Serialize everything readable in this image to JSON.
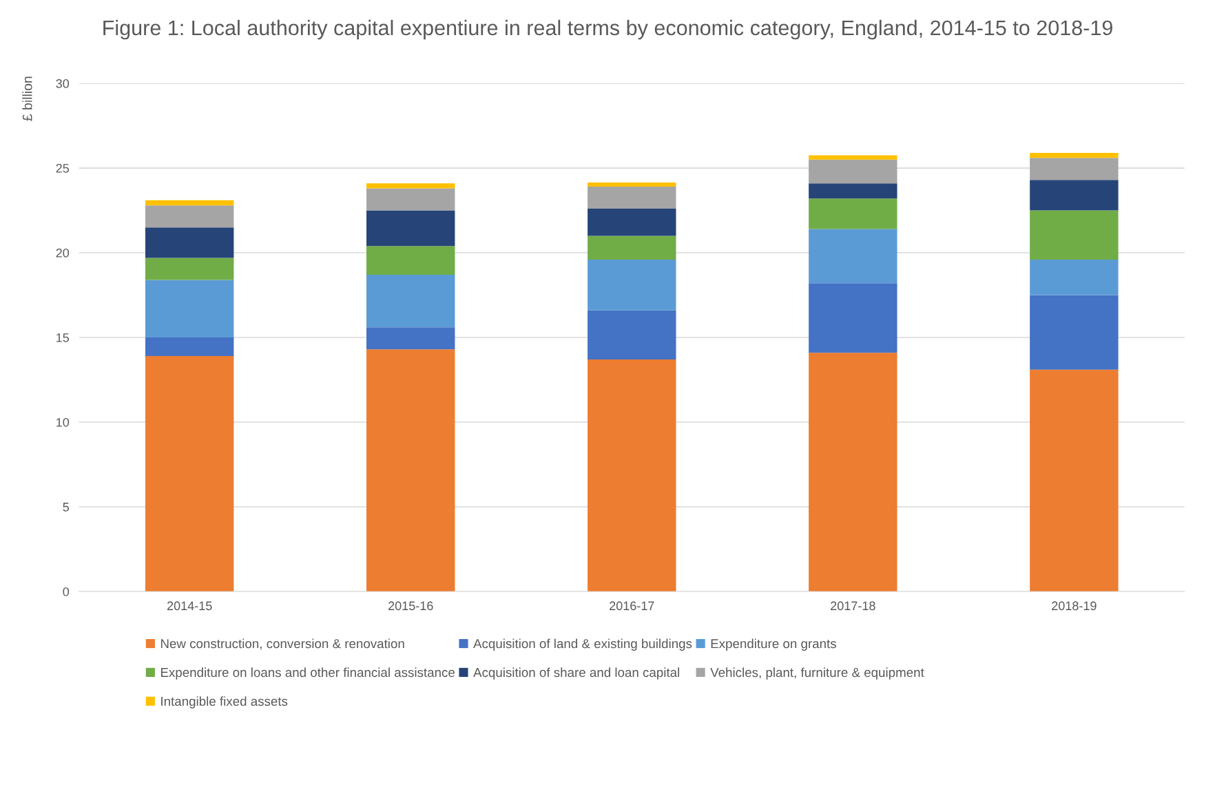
{
  "chart_data": {
    "type": "bar",
    "stacked": true,
    "title": "Figure 1: Local authority capital expentiure in real terms by economic category, England, 2014-15 to 2018-19",
    "ylabel": "£ billion",
    "categories": [
      "2014-15",
      "2015-16",
      "2016-17",
      "2017-18",
      "2018-19"
    ],
    "series": [
      {
        "name": "New construction, conversion & renovation",
        "color": "#ed7d31",
        "values": [
          13.9,
          14.3,
          13.7,
          14.1,
          13.1
        ]
      },
      {
        "name": "Acquisition of land & existing buildings",
        "color": "#4472c4",
        "values": [
          1.1,
          1.3,
          2.9,
          4.1,
          4.4
        ]
      },
      {
        "name": "Expenditure on grants",
        "color": "#5b9bd5",
        "values": [
          3.4,
          3.1,
          3.0,
          3.2,
          2.1
        ]
      },
      {
        "name": "Expenditure on loans and other financial assistance",
        "color": "#70ad47",
        "values": [
          1.3,
          1.7,
          1.4,
          1.8,
          2.9
        ]
      },
      {
        "name": "Acquisition of share and loan capital",
        "color": "#264478",
        "values": [
          1.8,
          2.1,
          1.6,
          0.9,
          1.8
        ]
      },
      {
        "name": "Vehicles, plant, furniture & equipment",
        "color": "#a5a5a5",
        "values": [
          1.3,
          1.3,
          1.3,
          1.4,
          1.3
        ]
      },
      {
        "name": "Intangible fixed assets",
        "color": "#ffc000",
        "values": [
          0.3,
          0.3,
          0.25,
          0.25,
          0.3
        ]
      }
    ],
    "ylim": [
      0,
      30
    ],
    "yticks": [
      0,
      5,
      10,
      15,
      20,
      25,
      30
    ],
    "grid": "y",
    "legend": "bottom"
  }
}
